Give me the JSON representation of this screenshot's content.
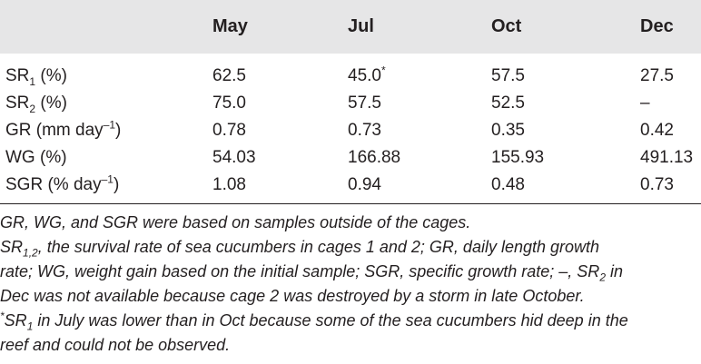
{
  "table": {
    "columns": [
      "",
      "May",
      "Jul",
      "Oct",
      "Dec"
    ],
    "rows": [
      {
        "label_main": "SR",
        "label_sub": "1",
        "label_rest": " (%)",
        "values": [
          "62.5",
          "45.0",
          "57.5",
          "27.5"
        ],
        "jul_sup": "*"
      },
      {
        "label_main": "SR",
        "label_sub": "2",
        "label_rest": " (%)",
        "values": [
          "75.0",
          "57.5",
          "52.5",
          "–"
        ]
      },
      {
        "label_main": "GR (mm day",
        "label_sup": "–1",
        "label_rest": ")",
        "values": [
          "0.78",
          "0.73",
          "0.35",
          "0.42"
        ]
      },
      {
        "label_main": "WG (%)",
        "values": [
          "54.03",
          "166.88",
          "155.93",
          "491.13"
        ]
      },
      {
        "label_main": "SGR (% day",
        "label_sup": "–1",
        "label_rest": ")",
        "values": [
          "1.08",
          "0.94",
          "0.48",
          "0.73"
        ]
      }
    ]
  },
  "notes": {
    "line1": "GR, WG, and SGR were based on samples outside of the cages.",
    "line2a_main": "SR",
    "line2a_sub": "1,2",
    "line2a_rest": ", the survival rate of sea cucumbers in cages 1 and 2; GR, daily length growth",
    "line2b": "rate; WG, weight gain based on the initial sample; SGR, specific growth rate; –, SR",
    "line2b_sub": "2",
    "line2b_rest": " in",
    "line2c": "Dec was not available because cage 2 was destroyed by a storm in late October.",
    "line3_sup": "*",
    "line3_main": "SR",
    "line3_sub": "1",
    "line3_rest": " in July was lower than in Oct because some of the sea cucumbers hid deep in the",
    "line3b": "reef and could not be observed."
  }
}
